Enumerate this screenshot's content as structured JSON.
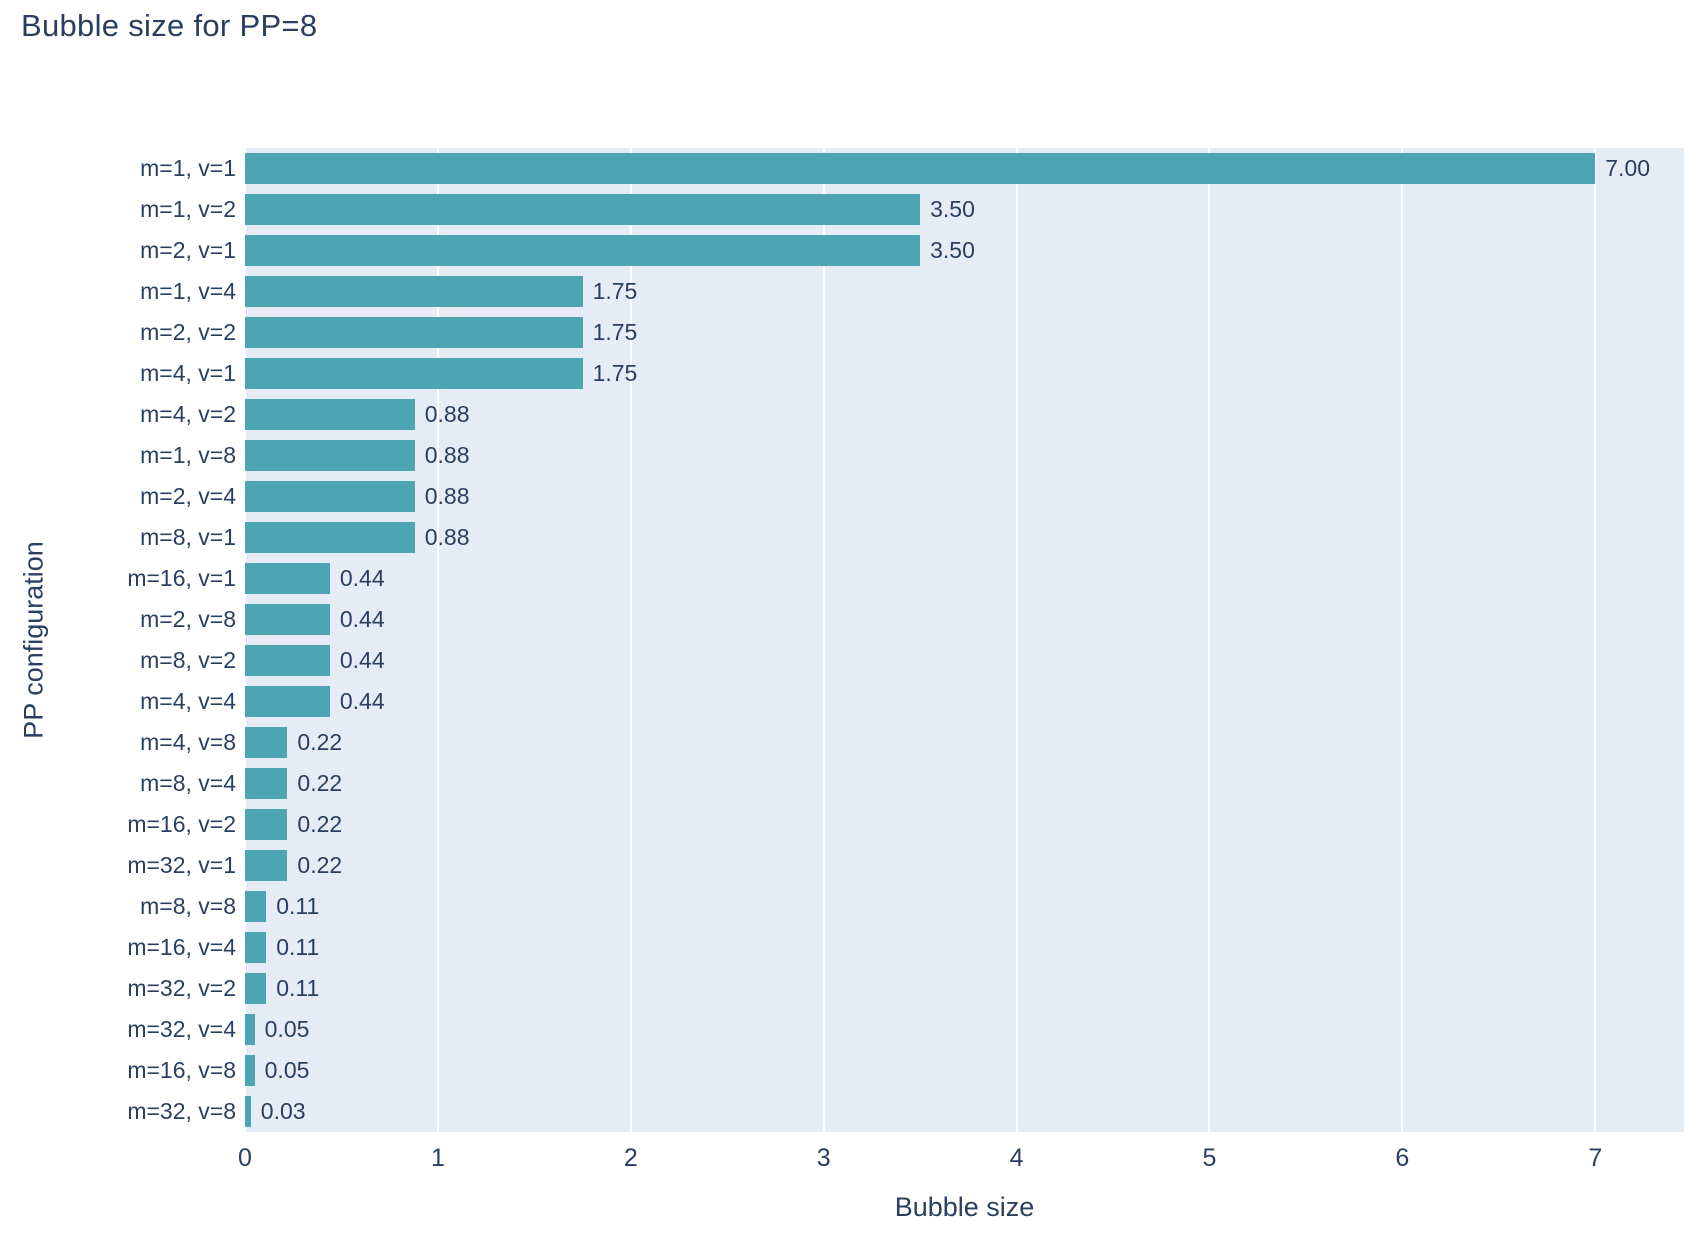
{
  "title": "Bubble size for PP=8",
  "colors": {
    "bar": "#4DA4B3",
    "plot_bg": "#E5ECF6",
    "grid": "#FFFFFF",
    "text": "#2A3F5F",
    "page_bg": "#FFFFFF"
  },
  "chart_data": {
    "type": "bar",
    "orientation": "horizontal",
    "title": "Bubble size for PP=8",
    "xlabel": "Bubble size",
    "ylabel": "PP configuration",
    "xlim": [
      0,
      7.46
    ],
    "x_ticks": [
      0,
      1,
      2,
      3,
      4,
      5,
      6,
      7
    ],
    "grid": true,
    "legend": false,
    "categories": [
      "m=1, v=1",
      "m=1, v=2",
      "m=2, v=1",
      "m=1, v=4",
      "m=2, v=2",
      "m=4, v=1",
      "m=4, v=2",
      "m=1, v=8",
      "m=2, v=4",
      "m=8, v=1",
      "m=16, v=1",
      "m=2, v=8",
      "m=8, v=2",
      "m=4, v=4",
      "m=4, v=8",
      "m=8, v=4",
      "m=16, v=2",
      "m=32, v=1",
      "m=8, v=8",
      "m=16, v=4",
      "m=32, v=2",
      "m=32, v=4",
      "m=16, v=8",
      "m=32, v=8"
    ],
    "values": [
      7.0,
      3.5,
      3.5,
      1.75,
      1.75,
      1.75,
      0.88,
      0.88,
      0.88,
      0.88,
      0.44,
      0.44,
      0.44,
      0.44,
      0.22,
      0.22,
      0.22,
      0.22,
      0.11,
      0.11,
      0.11,
      0.05,
      0.05,
      0.03
    ],
    "value_labels": [
      "7.00",
      "3.50",
      "3.50",
      "1.75",
      "1.75",
      "1.75",
      "0.88",
      "0.88",
      "0.88",
      "0.88",
      "0.44",
      "0.44",
      "0.44",
      "0.44",
      "0.22",
      "0.22",
      "0.22",
      "0.22",
      "0.11",
      "0.11",
      "0.11",
      "0.05",
      "0.05",
      "0.03"
    ]
  }
}
